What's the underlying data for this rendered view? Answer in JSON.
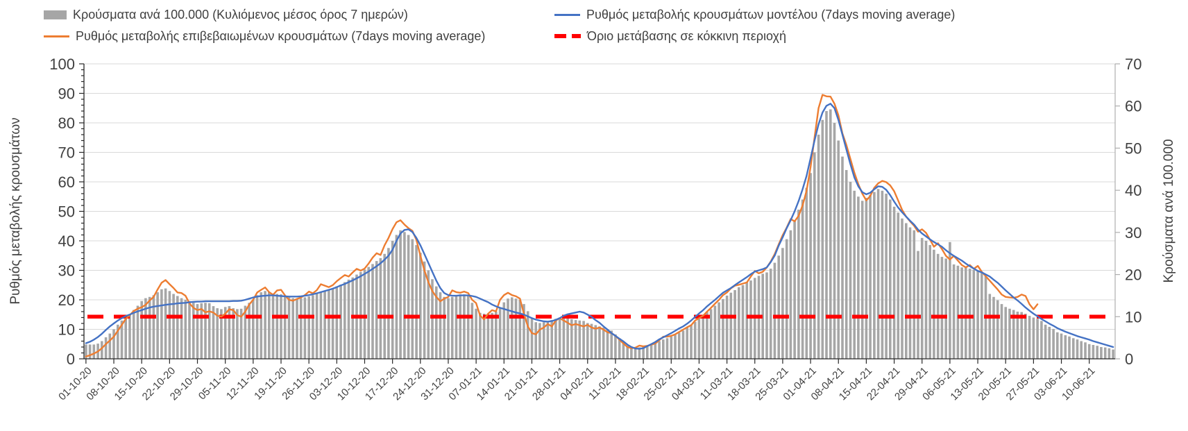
{
  "legend": {
    "items": [
      {
        "label": "Κρούσματα ανά 100.000 (Κυλιόμενος μέσος όρος 7 ημερών)",
        "marker": "bar-swatch",
        "color": "#A6A6A6"
      },
      {
        "label": "Ρυθμός μεταβολής κρουσμάτων μοντέλου (7days moving average)",
        "marker": "line",
        "color": "#4472C4"
      },
      {
        "label": "Ρυθμός μεταβολής επιβεβαιωμένων κρουσμάτων (7days moving average)",
        "marker": "line",
        "color": "#ED7D31"
      },
      {
        "label": "Όριο μετάβασης σε κόκκινη περιοχή",
        "marker": "dashed-line",
        "color": "#FF0000"
      }
    ]
  },
  "chart_data": {
    "type": "combo",
    "title": "",
    "frequency": "daily",
    "x_start": "01-10-20",
    "x_end": "16-06-21",
    "x_tick_labels": [
      "01-10-20",
      "08-10-20",
      "15-10-20",
      "22-10-20",
      "29-10-20",
      "05-11-20",
      "12-11-20",
      "19-11-20",
      "26-11-20",
      "03-12-20",
      "10-12-20",
      "17-12-20",
      "24-12-20",
      "31-12-20",
      "07-01-21",
      "14-01-21",
      "21-01-21",
      "28-01-21",
      "04-02-21",
      "11-02-21",
      "18-02-21",
      "25-02-21",
      "04-03-21",
      "11-03-21",
      "18-03-21",
      "25-03-21",
      "01-04-21",
      "08-04-21",
      "15-04-21",
      "22-04-21",
      "29-04-21",
      "06-05-21",
      "13-05-21",
      "20-05-21",
      "27-05-21",
      "03-06-21",
      "10-06-21"
    ],
    "x_tick_interval_days": 7,
    "grid": "horizontal",
    "legend_position": "top",
    "left_axis": {
      "title": "Ρυθμός μεταβολής κρουσμάτων",
      "min": 0,
      "max": 100,
      "tick_step": 10,
      "ticks": [
        0,
        10,
        20,
        30,
        40,
        50,
        60,
        70,
        80,
        90,
        100
      ],
      "minor_tick_step": 2
    },
    "right_axis": {
      "title": "Κρούσματα ανά 100.000",
      "min": 0,
      "max": 70,
      "tick_step": 10,
      "ticks": [
        0,
        10,
        20,
        30,
        40,
        50,
        60,
        70
      ]
    },
    "series": [
      {
        "name": "Κρούσματα ανά 100.000 (Κυλιόμενος μέσος όρος 7 ημερών)",
        "type": "bar",
        "axis": "right",
        "color": "#A6A6A6",
        "values": [
          3.4,
          3.4,
          3.4,
          3.6,
          4.2,
          5.1,
          6.0,
          7.0,
          8.1,
          9.1,
          9.9,
          10.6,
          11.6,
          12.6,
          13.7,
          14.4,
          14.7,
          15.1,
          15.8,
          16.5,
          16.7,
          16.1,
          15.4,
          14.9,
          14.4,
          14.0,
          13.7,
          13.3,
          13.0,
          13.2,
          13.3,
          13.2,
          12.5,
          12.0,
          11.8,
          12.3,
          12.5,
          12.0,
          11.8,
          11.9,
          12.6,
          13.3,
          14.1,
          15.1,
          15.8,
          16.1,
          15.8,
          15.4,
          15.4,
          15.3,
          14.8,
          14.6,
          14.4,
          14.2,
          14.4,
          14.6,
          14.8,
          15.1,
          15.4,
          15.8,
          16.1,
          16.5,
          16.8,
          17.2,
          17.6,
          18.2,
          18.8,
          19.3,
          20.0,
          20.6,
          21.2,
          21.8,
          22.5,
          23.2,
          23.9,
          24.9,
          26.3,
          28.0,
          29.4,
          30.5,
          30.1,
          29.4,
          28.4,
          27.0,
          25.2,
          23.1,
          21.0,
          18.9,
          17.2,
          15.8,
          14.7,
          14.4,
          14.7,
          15.1,
          15.3,
          15.3,
          15.1,
          13.3,
          11.9,
          10.9,
          10.7,
          10.7,
          10.9,
          11.2,
          12.1,
          13.4,
          14.3,
          14.6,
          14.3,
          14.0,
          13.0,
          11.3,
          9.7,
          8.7,
          8.5,
          8.7,
          9.0,
          9.2,
          9.5,
          9.8,
          9.9,
          9.7,
          9.4,
          9.2,
          9.1,
          9.0,
          8.5,
          8.3,
          8.0,
          7.7,
          7.4,
          7.0,
          6.7,
          5.8,
          4.9,
          3.9,
          3.1,
          2.7,
          2.5,
          2.7,
          2.8,
          3.1,
          3.5,
          3.8,
          4.2,
          4.6,
          4.9,
          5.3,
          5.7,
          6.2,
          6.7,
          7.4,
          8.1,
          8.8,
          9.5,
          10.2,
          11.1,
          11.8,
          12.6,
          13.4,
          14.2,
          15.0,
          15.7,
          16.3,
          17.0,
          17.5,
          18.1,
          18.6,
          19.2,
          19.7,
          20.2,
          20.5,
          21.4,
          22.8,
          24.5,
          26.3,
          28.4,
          30.5,
          32.9,
          35.4,
          37.8,
          40.6,
          44.1,
          49.0,
          53.2,
          56.7,
          58.8,
          59.2,
          56.0,
          51.8,
          48.0,
          44.8,
          42.0,
          39.9,
          38.5,
          37.5,
          38.2,
          38.9,
          39.6,
          40.3,
          39.9,
          39.2,
          37.8,
          36.1,
          34.7,
          33.3,
          32.2,
          31.2,
          30.5,
          25.6,
          28.7,
          28.0,
          27.0,
          25.9,
          24.9,
          24.2,
          23.8,
          27.7,
          22.4,
          22.1,
          21.7,
          21.6,
          21.4,
          21.1,
          20.9,
          20.5,
          19.6,
          15.4,
          14.7,
          13.9,
          13.0,
          12.3,
          11.9,
          11.6,
          11.2,
          11.1,
          10.7,
          10.2,
          9.8,
          9.5,
          9.0,
          8.1,
          7.6,
          7.1,
          6.3,
          6.0,
          5.6,
          5.3,
          4.9,
          4.6,
          4.2,
          3.9,
          3.5,
          3.3,
          3.1,
          2.8,
          2.7,
          2.5,
          2.2
        ]
      },
      {
        "name": "Ρυθμός μεταβολής επιβεβαιωμένων κρουσμάτων (7days moving average)",
        "type": "line",
        "axis": "left",
        "color": "#ED7D31",
        "ends_at": "28-05-21",
        "values": [
          0.8,
          1.2,
          1.8,
          2.5,
          3.6,
          5.0,
          6.2,
          7.5,
          9.5,
          11.5,
          13.5,
          14.8,
          16.2,
          17.0,
          17.5,
          18.3,
          19.8,
          21.0,
          23.5,
          25.8,
          26.7,
          25.3,
          24.0,
          22.5,
          22.3,
          21.4,
          18.8,
          17.3,
          16.5,
          16.9,
          15.8,
          16.1,
          15.7,
          14.6,
          14.3,
          15.3,
          16.8,
          16.5,
          14.8,
          14.3,
          16.0,
          18.4,
          20.0,
          22.5,
          23.4,
          24.2,
          22.6,
          21.7,
          23.2,
          23.4,
          21.5,
          20.0,
          19.7,
          20.3,
          20.8,
          21.6,
          22.8,
          22.2,
          23.3,
          25.3,
          24.8,
          24.3,
          25.0,
          26.3,
          27.4,
          28.4,
          27.9,
          29.3,
          30.5,
          29.9,
          30.6,
          32.3,
          34.3,
          35.8,
          35.2,
          38.5,
          41.0,
          44.0,
          46.3,
          47.0,
          45.5,
          44.3,
          43.4,
          40.3,
          35.0,
          30.0,
          26.0,
          23.0,
          21.0,
          19.5,
          20.4,
          21.0,
          23.2,
          22.6,
          22.4,
          22.8,
          22.3,
          20.0,
          18.9,
          14.6,
          13.4,
          15.3,
          16.5,
          16.1,
          20.0,
          21.6,
          22.4,
          21.6,
          21.2,
          20.4,
          15.3,
          11.0,
          8.7,
          8.3,
          9.9,
          10.6,
          11.8,
          11.0,
          13.0,
          13.8,
          13.0,
          12.2,
          11.4,
          11.8,
          11.4,
          11.0,
          11.5,
          10.6,
          10.2,
          10.6,
          9.9,
          9.0,
          8.7,
          7.8,
          6.5,
          5.2,
          4.0,
          3.6,
          3.8,
          4.5,
          4.2,
          4.4,
          4.8,
          5.2,
          6.3,
          7.5,
          7.5,
          7.8,
          8.3,
          9.1,
          9.9,
          10.7,
          11.4,
          13.0,
          13.8,
          14.6,
          16.0,
          17.3,
          18.7,
          20.0,
          21.6,
          22.5,
          23.9,
          24.8,
          25.1,
          25.5,
          25.9,
          27.9,
          29.8,
          29.0,
          29.5,
          31.0,
          33.0,
          35.5,
          38.8,
          41.9,
          44.5,
          47.4,
          46.6,
          48.5,
          52.0,
          57.0,
          65.0,
          75.0,
          85.0,
          89.5,
          89.0,
          88.9,
          86.5,
          82.6,
          76.4,
          72.5,
          67.8,
          63.1,
          59.2,
          56.0,
          53.7,
          55.2,
          58.0,
          59.5,
          60.3,
          59.9,
          58.8,
          56.8,
          53.7,
          50.5,
          48.2,
          46.6,
          45.1,
          43.1,
          43.9,
          42.7,
          40.4,
          38.0,
          39.2,
          37.2,
          34.9,
          33.7,
          34.9,
          33.3,
          31.8,
          31.0,
          31.8,
          30.5,
          31.5,
          29.5,
          28.0,
          26.5,
          25.0,
          23.5,
          21.8,
          21.0,
          20.8,
          20.7,
          21.0,
          21.8,
          21.3,
          18.5,
          16.8,
          18.5
        ]
      },
      {
        "name": "Ρυθμός μεταβολής κρουσμάτων μοντέλου (7days moving average)",
        "type": "line",
        "axis": "left",
        "color": "#4472C4",
        "values": [
          5.3,
          5.8,
          6.5,
          7.4,
          8.5,
          9.8,
          11.0,
          12.0,
          13.0,
          13.8,
          14.5,
          15.0,
          15.6,
          16.1,
          16.5,
          17.0,
          17.4,
          17.7,
          17.9,
          18.1,
          18.3,
          18.5,
          18.6,
          18.8,
          18.9,
          19.0,
          19.2,
          19.3,
          19.4,
          19.4,
          19.5,
          19.5,
          19.5,
          19.5,
          19.5,
          19.5,
          19.5,
          19.6,
          19.6,
          19.7,
          20.0,
          20.4,
          20.8,
          21.1,
          21.3,
          21.4,
          21.5,
          21.5,
          21.4,
          21.3,
          21.2,
          21.1,
          21.1,
          21.1,
          21.2,
          21.4,
          21.6,
          21.9,
          22.2,
          22.6,
          23.0,
          23.4,
          23.8,
          24.3,
          24.9,
          25.4,
          26.0,
          26.6,
          27.3,
          28.0,
          28.8,
          29.6,
          30.5,
          31.4,
          32.4,
          33.6,
          35.0,
          37.0,
          40.0,
          42.5,
          43.7,
          43.9,
          43.0,
          41.0,
          38.5,
          35.5,
          32.5,
          29.5,
          26.5,
          24.0,
          22.3,
          21.6,
          21.4,
          21.4,
          21.5,
          21.5,
          21.5,
          21.3,
          21.0,
          20.4,
          19.8,
          19.2,
          18.4,
          17.8,
          17.3,
          16.9,
          16.5,
          16.1,
          15.7,
          15.4,
          15.0,
          14.4,
          13.8,
          13.3,
          13.0,
          12.7,
          12.6,
          12.8,
          13.2,
          13.8,
          14.6,
          15.1,
          15.4,
          15.7,
          16.0,
          15.7,
          15.0,
          14.2,
          13.1,
          12.2,
          11.0,
          9.9,
          8.7,
          7.8,
          6.8,
          5.9,
          4.8,
          4.0,
          3.5,
          3.4,
          3.6,
          4.3,
          5.0,
          5.7,
          6.6,
          7.3,
          8.0,
          8.7,
          9.5,
          10.3,
          11.0,
          11.9,
          13.0,
          14.2,
          15.4,
          16.5,
          17.8,
          18.9,
          20.0,
          21.2,
          22.4,
          23.2,
          24.0,
          25.0,
          25.9,
          26.8,
          27.7,
          28.7,
          29.6,
          30.0,
          30.4,
          31.0,
          32.8,
          35.0,
          38.4,
          41.2,
          44.3,
          47.0,
          50.0,
          53.5,
          57.5,
          62.0,
          68.0,
          74.0,
          79.5,
          83.5,
          85.8,
          86.5,
          85.0,
          81.0,
          76.0,
          71.0,
          66.0,
          61.5,
          58.5,
          56.5,
          55.8,
          56.3,
          57.5,
          58.5,
          58.3,
          57.3,
          55.5,
          53.3,
          51.3,
          49.7,
          48.2,
          46.8,
          45.5,
          43.8,
          42.5,
          41.5,
          40.5,
          39.6,
          38.8,
          38.0,
          36.8,
          35.8,
          34.9,
          34.1,
          33.3,
          32.3,
          31.4,
          30.6,
          29.8,
          29.3,
          28.6,
          27.9,
          26.8,
          25.8,
          24.5,
          23.2,
          22.0,
          20.8,
          19.8,
          18.6,
          17.4,
          16.3,
          15.3,
          14.4,
          13.5,
          12.7,
          11.9,
          11.2,
          10.4,
          9.8,
          9.2,
          8.7,
          8.2,
          7.7,
          7.3,
          6.9,
          6.5,
          6.0,
          5.6,
          5.2,
          4.8,
          4.4,
          4.0
        ]
      },
      {
        "name": "Όριο μετάβασης σε κόκκινη περιοχή",
        "type": "threshold",
        "axis": "right",
        "color": "#FF0000",
        "value": 10
      }
    ]
  },
  "colors": {
    "bars": "#A6A6A6",
    "model_line": "#4472C4",
    "confirmed_line": "#ED7D31",
    "threshold_line": "#FF0000",
    "gridline": "#D9D9D9",
    "axis_text": "#404040"
  }
}
